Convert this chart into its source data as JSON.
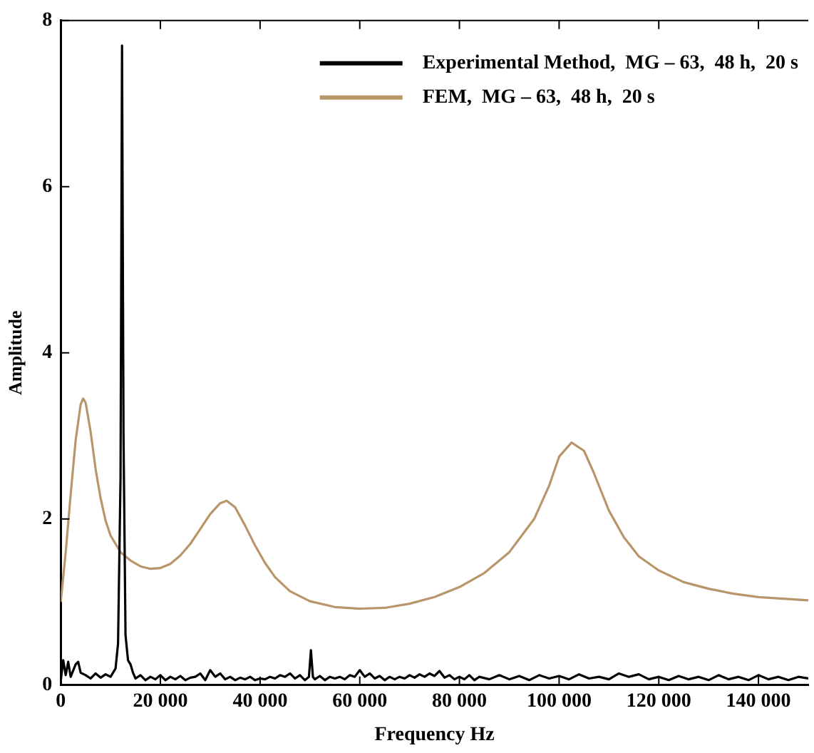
{
  "chart_data": {
    "type": "line",
    "xlabel": "Frequency Hz",
    "ylabel": "Amplitude",
    "xlim": [
      0,
      150000
    ],
    "ylim": [
      0,
      8
    ],
    "xticks": [
      0,
      {
        "value": 20000,
        "label": "20 000"
      },
      {
        "value": 40000,
        "label": "40 000"
      },
      {
        "value": 60000,
        "label": "60 000"
      },
      {
        "value": 80000,
        "label": "80 000"
      },
      {
        "value": 100000,
        "label": "100 000"
      },
      {
        "value": 120000,
        "label": "120 000"
      },
      {
        "value": 140000,
        "label": "140 000"
      }
    ],
    "yticks": [
      0,
      2,
      4,
      6,
      8
    ],
    "grid": false,
    "legend": "top right",
    "marker": "none",
    "line_style": "solid",
    "series": [
      {
        "name": "Experimental Method,  MG – 63,  48 h,  20 s",
        "color": "#000000",
        "x": [
          0,
          500,
          1000,
          1500,
          2000,
          3000,
          3500,
          4000,
          5000,
          6000,
          7000,
          8000,
          9000,
          10000,
          11000,
          11500,
          12000,
          12300,
          12600,
          13000,
          13500,
          14000,
          14500,
          15000,
          16000,
          17000,
          18000,
          19000,
          20000,
          21000,
          22000,
          23000,
          24000,
          25000,
          26000,
          27000,
          28000,
          29000,
          30000,
          31000,
          32000,
          33000,
          34000,
          35000,
          36000,
          37000,
          38000,
          39000,
          40000,
          41000,
          42000,
          43000,
          44000,
          45000,
          46000,
          47000,
          48000,
          49000,
          49800,
          50200,
          50600,
          51000,
          52000,
          53000,
          54000,
          55000,
          56000,
          57000,
          58000,
          59000,
          60000,
          61000,
          62000,
          63000,
          64000,
          65000,
          66000,
          67000,
          68000,
          69000,
          70000,
          71000,
          72000,
          73000,
          74000,
          75000,
          76000,
          77000,
          78000,
          79000,
          80000,
          81000,
          82000,
          83000,
          84000,
          86000,
          88000,
          90000,
          92000,
          94000,
          96000,
          98000,
          100000,
          102000,
          104000,
          106000,
          108000,
          110000,
          112000,
          114000,
          116000,
          118000,
          120000,
          122000,
          124000,
          126000,
          128000,
          130000,
          132000,
          134000,
          136000,
          138000,
          140000,
          142000,
          144000,
          146000,
          148000,
          150000
        ],
        "values": [
          0.05,
          0.3,
          0.12,
          0.28,
          0.1,
          0.25,
          0.28,
          0.15,
          0.12,
          0.08,
          0.14,
          0.09,
          0.13,
          0.1,
          0.2,
          0.5,
          2.5,
          7.7,
          3.0,
          0.6,
          0.3,
          0.25,
          0.15,
          0.08,
          0.12,
          0.06,
          0.1,
          0.07,
          0.12,
          0.06,
          0.1,
          0.07,
          0.11,
          0.06,
          0.09,
          0.1,
          0.14,
          0.06,
          0.18,
          0.1,
          0.14,
          0.07,
          0.1,
          0.06,
          0.09,
          0.07,
          0.1,
          0.06,
          0.08,
          0.07,
          0.1,
          0.08,
          0.12,
          0.1,
          0.14,
          0.08,
          0.12,
          0.06,
          0.1,
          0.42,
          0.1,
          0.07,
          0.11,
          0.06,
          0.1,
          0.08,
          0.1,
          0.07,
          0.12,
          0.1,
          0.18,
          0.1,
          0.14,
          0.08,
          0.11,
          0.06,
          0.1,
          0.07,
          0.1,
          0.08,
          0.12,
          0.09,
          0.13,
          0.1,
          0.14,
          0.11,
          0.17,
          0.09,
          0.12,
          0.07,
          0.1,
          0.07,
          0.12,
          0.06,
          0.1,
          0.07,
          0.12,
          0.07,
          0.11,
          0.06,
          0.12,
          0.08,
          0.11,
          0.07,
          0.13,
          0.08,
          0.1,
          0.07,
          0.14,
          0.1,
          0.13,
          0.07,
          0.1,
          0.06,
          0.11,
          0.07,
          0.1,
          0.06,
          0.12,
          0.07,
          0.1,
          0.06,
          0.12,
          0.07,
          0.1,
          0.06,
          0.1,
          0.08
        ]
      },
      {
        "name": "FEM,  MG – 63,  48 h,  20 s",
        "color": "#b8966a",
        "x": [
          0,
          1000,
          2000,
          3000,
          4000,
          4500,
          5000,
          6000,
          7000,
          8000,
          9000,
          10000,
          12000,
          14000,
          16000,
          18000,
          20000,
          22000,
          24000,
          26000,
          28000,
          30000,
          32000,
          33300,
          35000,
          37000,
          39000,
          41000,
          43000,
          46000,
          50000,
          55000,
          60000,
          65000,
          70000,
          75000,
          80000,
          85000,
          90000,
          95000,
          98000,
          100000,
          102500,
          105000,
          107000,
          110000,
          113000,
          116000,
          120000,
          125000,
          130000,
          135000,
          140000,
          145000,
          150000
        ],
        "values": [
          1.0,
          1.6,
          2.3,
          2.95,
          3.38,
          3.45,
          3.4,
          3.05,
          2.6,
          2.25,
          1.98,
          1.8,
          1.6,
          1.5,
          1.43,
          1.4,
          1.41,
          1.46,
          1.56,
          1.7,
          1.88,
          2.06,
          2.19,
          2.22,
          2.14,
          1.92,
          1.68,
          1.47,
          1.3,
          1.13,
          1.01,
          0.94,
          0.92,
          0.93,
          0.98,
          1.06,
          1.18,
          1.35,
          1.6,
          2.0,
          2.4,
          2.75,
          2.92,
          2.82,
          2.55,
          2.1,
          1.78,
          1.55,
          1.38,
          1.24,
          1.16,
          1.1,
          1.06,
          1.04,
          1.02
        ]
      }
    ]
  }
}
